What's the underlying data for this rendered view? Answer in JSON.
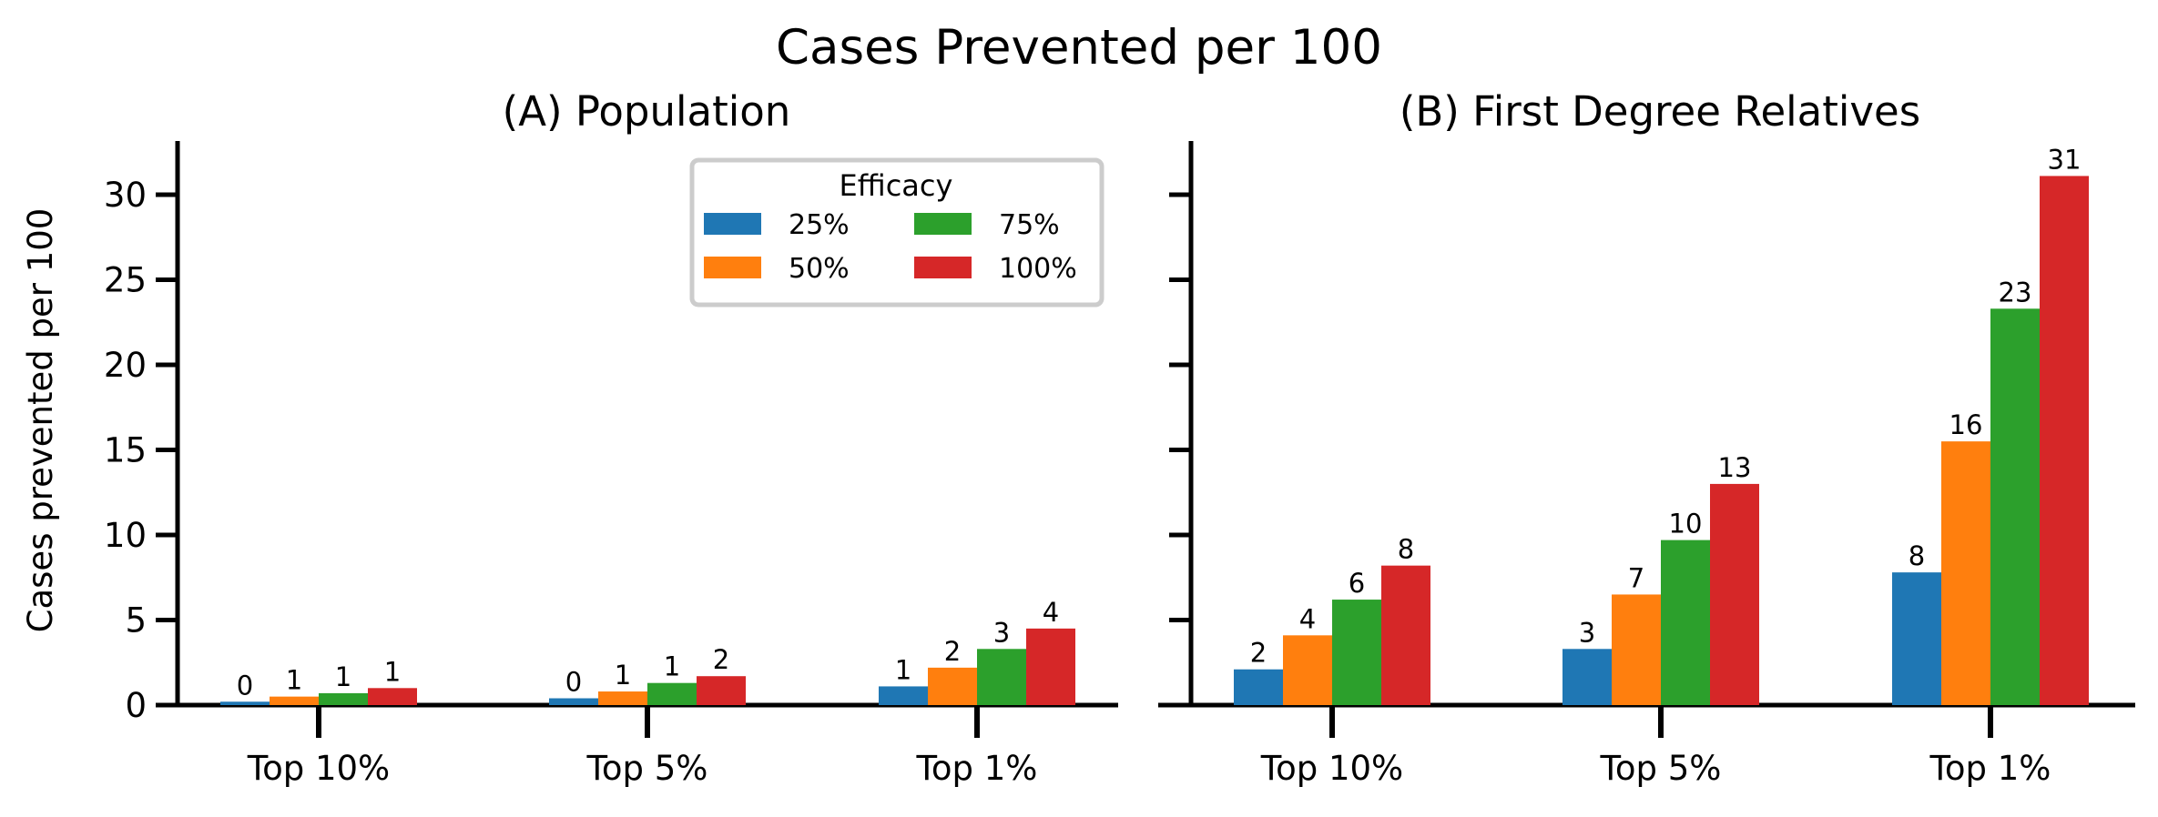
{
  "title": "Cases Prevented per 100",
  "legend": {
    "title": "Efficacy",
    "placement": "upper right of panel A",
    "columns": 2
  },
  "colors": {
    "25%": "#1f77b4",
    "50%": "#ff7f0e",
    "75%": "#2ca02c",
    "100%": "#d62728"
  },
  "chart_data": [
    {
      "type": "bar",
      "title": "(A)  Population",
      "ylabel": "Cases prevented per 100",
      "xlabel": "",
      "categories": [
        "Top 10%",
        "Top 5%",
        "Top 1%"
      ],
      "ylim": [
        0,
        33
      ],
      "yticks": [
        0,
        5,
        10,
        15,
        20,
        25,
        30
      ],
      "grid": false,
      "series": [
        {
          "name": "25%",
          "values": [
            0.2,
            0.4,
            1.1
          ],
          "labels": [
            "0",
            "0",
            "1"
          ]
        },
        {
          "name": "50%",
          "values": [
            0.5,
            0.8,
            2.2
          ],
          "labels": [
            "1",
            "1",
            "2"
          ]
        },
        {
          "name": "75%",
          "values": [
            0.7,
            1.3,
            3.3
          ],
          "labels": [
            "1",
            "1",
            "3"
          ]
        },
        {
          "name": "100%",
          "values": [
            1.0,
            1.7,
            4.5
          ],
          "labels": [
            "1",
            "2",
            "4"
          ]
        }
      ]
    },
    {
      "type": "bar",
      "title": "(B)  First Degree Relatives",
      "ylabel": "",
      "xlabel": "",
      "categories": [
        "Top 10%",
        "Top 5%",
        "Top 1%"
      ],
      "ylim": [
        0,
        33
      ],
      "yticks": [
        0,
        5,
        10,
        15,
        20,
        25,
        30
      ],
      "grid": false,
      "series": [
        {
          "name": "25%",
          "values": [
            2.1,
            3.3,
            7.8
          ],
          "labels": [
            "2",
            "3",
            "8"
          ]
        },
        {
          "name": "50%",
          "values": [
            4.1,
            6.5,
            15.5
          ],
          "labels": [
            "4",
            "7",
            "16"
          ]
        },
        {
          "name": "75%",
          "values": [
            6.2,
            9.7,
            23.3
          ],
          "labels": [
            "6",
            "10",
            "23"
          ]
        },
        {
          "name": "100%",
          "values": [
            8.2,
            13.0,
            31.1
          ],
          "labels": [
            "8",
            "13",
            "31"
          ]
        }
      ]
    }
  ]
}
